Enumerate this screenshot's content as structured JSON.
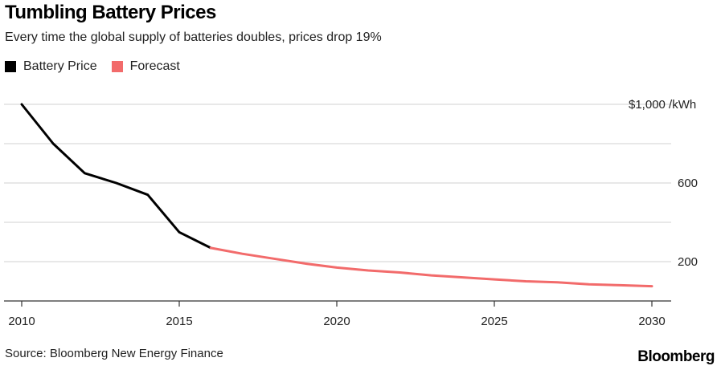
{
  "colors": {
    "actual": "#000000",
    "forecast": "#f26b6b",
    "grid": "#d9d9d9",
    "axis": "#333333"
  },
  "footer": {
    "source": "Source: Bloomberg New Energy Finance",
    "brand": "Bloomberg"
  },
  "chart_data": {
    "type": "line",
    "title": "Tumbling Battery Prices",
    "subtitle": "Every time the global supply of batteries doubles, prices drop 19%",
    "xlabel": "",
    "ylabel": "$/kWh",
    "xlim": [
      2010,
      2030
    ],
    "ylim": [
      0,
      1000
    ],
    "x_ticks": [
      2010,
      2015,
      2020,
      2025,
      2030
    ],
    "y_ticks": [
      {
        "value": 1000,
        "label": "$1,000 /kWh"
      },
      {
        "value": 600,
        "label": "600"
      },
      {
        "value": 200,
        "label": "200"
      }
    ],
    "grid_values": [
      1000,
      800,
      600,
      400,
      200
    ],
    "legend_position": "top-left",
    "series": [
      {
        "name": "Battery Price",
        "x": [
          2010,
          2011,
          2012,
          2013,
          2014,
          2015,
          2016
        ],
        "values": [
          1000,
          800,
          650,
          600,
          540,
          350,
          270
        ]
      },
      {
        "name": "Forecast",
        "x": [
          2016,
          2017,
          2018,
          2019,
          2020,
          2021,
          2022,
          2023,
          2024,
          2025,
          2026,
          2027,
          2028,
          2029,
          2030
        ],
        "values": [
          270,
          240,
          215,
          190,
          170,
          155,
          145,
          130,
          120,
          110,
          100,
          95,
          85,
          80,
          75
        ]
      }
    ]
  }
}
